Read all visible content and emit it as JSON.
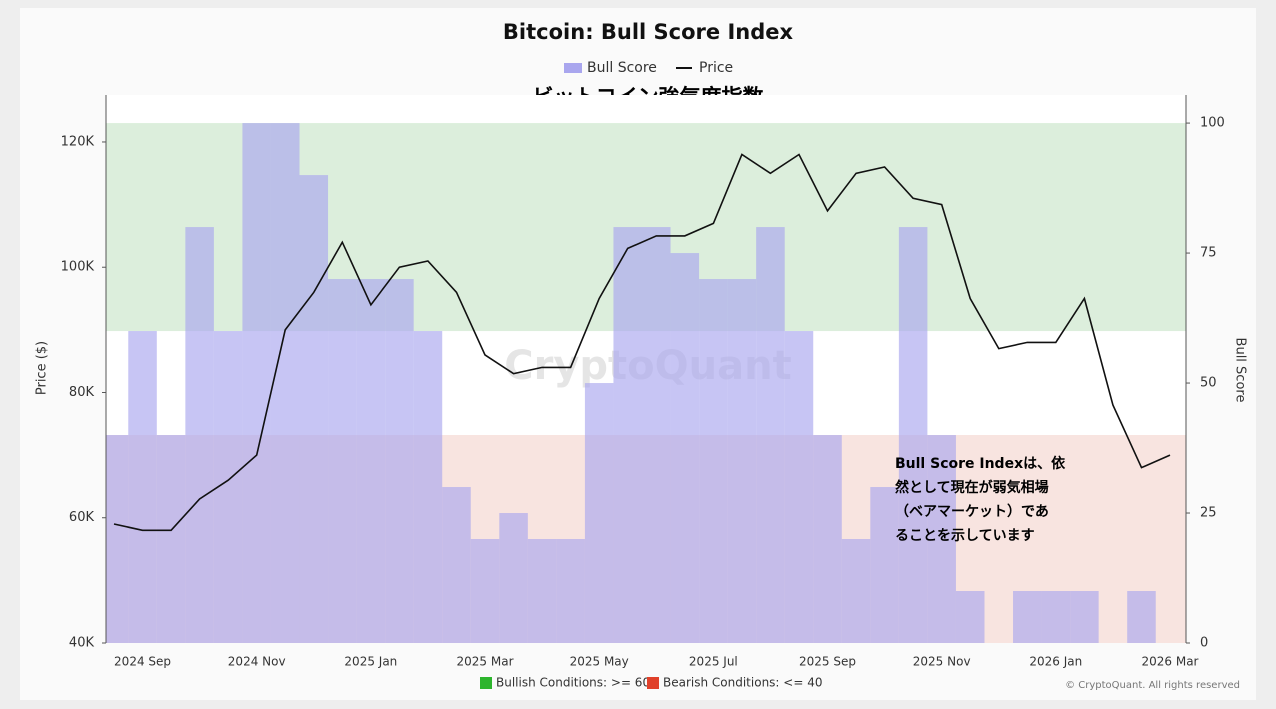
{
  "chart_data": {
    "type": "line",
    "title": "Bitcoin: Bull Score Index",
    "subtitle": "ビットコイン強気度指数",
    "watermark": "CryptoQuant",
    "copyright": "© CryptoQuant. All rights reserved",
    "ylabel": "Price ($)",
    "y2label": "Bull Score",
    "annotation": [
      "Bull Score Indexは、依",
      "然として現在が弱気相場",
      "（ベアマーケット）であ",
      "ることを示しています"
    ],
    "categories": [
      null,
      "2024 Sep",
      null,
      null,
      null,
      "2024 Nov",
      null,
      null,
      null,
      "2025 Jan",
      null,
      null,
      null,
      "2025 Mar",
      null,
      null,
      null,
      "2025 May",
      null,
      null,
      null,
      "2025 Jul",
      null,
      null,
      null,
      "2025 Sep",
      null,
      null,
      null,
      "2025 Nov",
      null,
      null,
      null,
      "2026 Jan",
      null,
      null,
      null,
      "2026 Mar"
    ],
    "series": [
      {
        "name": "Bull Score",
        "color": "#a9a6ee",
        "axis": "y2",
        "style": "step-area",
        "values": [
          40,
          60,
          40,
          80,
          60,
          100,
          100,
          90,
          70,
          70,
          70,
          60,
          30,
          20,
          25,
          20,
          20,
          50,
          80,
          80,
          75,
          70,
          70,
          80,
          60,
          40,
          20,
          30,
          80,
          40,
          10,
          0,
          10,
          10,
          10,
          0,
          10,
          0
        ]
      },
      {
        "name": "Price",
        "color": "#111111",
        "style": "line",
        "values": [
          59000,
          58000,
          58000,
          63000,
          66000,
          70000,
          90000,
          96000,
          104000,
          94000,
          100000,
          101000,
          96000,
          86000,
          83000,
          84000,
          84000,
          95000,
          103000,
          105000,
          105000,
          107000,
          118000,
          115000,
          118000,
          109000,
          115000,
          116000,
          111000,
          110000,
          95000,
          87000,
          88000,
          88000,
          95000,
          78000,
          68000,
          70000
        ]
      }
    ],
    "zones": [
      {
        "label": "Bullish Conditions: >= 60",
        "from": 60,
        "to": 100,
        "color": "#d3ead3",
        "marker_color": "#2db52d"
      },
      {
        "label": "Bearish Conditions: <= 40",
        "from": 0,
        "to": 40,
        "color": "#f6ddd8",
        "marker_color": "#e0402a"
      }
    ],
    "ylim": [
      40000,
      127500
    ],
    "yticks": [
      {
        "value": 40000,
        "label": "40K"
      },
      {
        "value": 60000,
        "label": "60K"
      },
      {
        "value": 80000,
        "label": "80K"
      },
      {
        "value": 100000,
        "label": "100K"
      },
      {
        "value": 120000,
        "label": "120K"
      }
    ],
    "y2lim": [
      0,
      105.4
    ],
    "y2ticks": [
      0,
      25,
      50,
      75,
      100
    ]
  }
}
